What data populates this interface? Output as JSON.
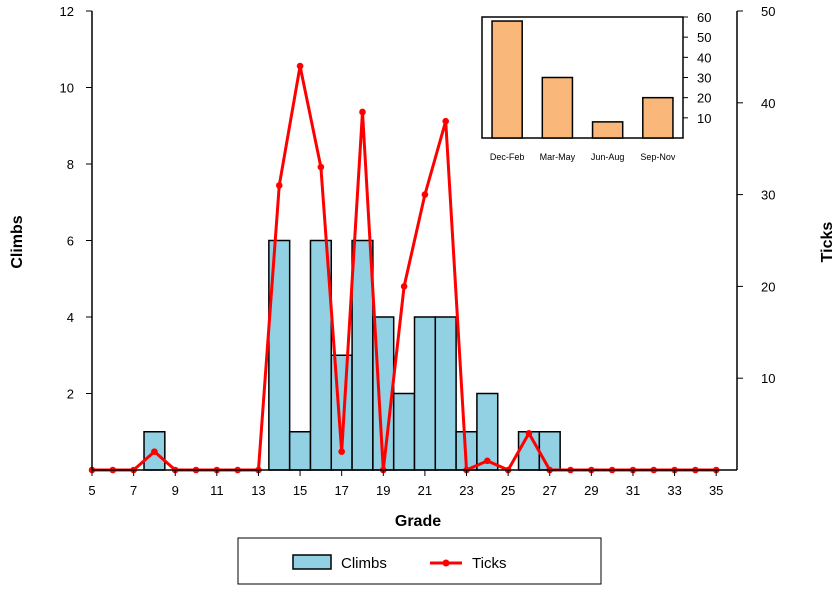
{
  "chart_data": [
    {
      "type": "bar",
      "xlabel": "Grade",
      "ylabel": "Climbs",
      "y2label": "Ticks",
      "xlim": [
        5,
        36
      ],
      "ylim": [
        0,
        12
      ],
      "y2lim": [
        0,
        50
      ],
      "xticks": [
        "5",
        "7",
        "9",
        "11",
        "13",
        "15",
        "17",
        "19",
        "21",
        "23",
        "25",
        "27",
        "29",
        "31",
        "33",
        "35"
      ],
      "yticks": [
        "2",
        "4",
        "6",
        "8",
        "10",
        "12"
      ],
      "y2ticks": [
        "10",
        "20",
        "30",
        "40",
        "50"
      ],
      "grid": false,
      "legend_position": "bottom",
      "series": [
        {
          "name": "Climbs",
          "type": "bar",
          "axis": "left",
          "color": "#92D0E4",
          "x": [
            5,
            6,
            7,
            8,
            9,
            10,
            11,
            12,
            13,
            14,
            15,
            16,
            17,
            18,
            19,
            20,
            21,
            22,
            23,
            24,
            25,
            26,
            27,
            28,
            29,
            30,
            31,
            32,
            33,
            34,
            35
          ],
          "values": [
            0,
            0,
            0,
            1,
            0,
            0,
            0,
            0,
            0,
            6,
            1,
            6,
            3,
            6,
            4,
            2,
            4,
            4,
            1,
            2,
            0,
            1,
            1,
            0,
            0,
            0,
            0,
            0,
            0,
            0,
            0
          ]
        },
        {
          "name": "Ticks",
          "type": "line",
          "axis": "right",
          "color": "#FF0000",
          "x": [
            5,
            6,
            7,
            8,
            9,
            10,
            11,
            12,
            13,
            14,
            15,
            16,
            17,
            18,
            19,
            20,
            21,
            22,
            23,
            24,
            25,
            26,
            27,
            28,
            29,
            30,
            31,
            32,
            33,
            34,
            35
          ],
          "values": [
            0,
            0,
            0,
            2,
            0,
            0,
            0,
            0,
            0,
            31,
            44,
            33,
            2,
            39,
            0,
            20,
            30,
            38,
            0,
            1,
            0,
            4,
            0,
            0,
            0,
            0,
            0,
            0,
            0,
            0,
            0
          ]
        }
      ]
    },
    {
      "type": "bar",
      "inset": true,
      "categories": [
        "Dec-Feb",
        "Mar-May",
        "Jun-Aug",
        "Sep-Nov"
      ],
      "values": [
        58,
        30,
        8,
        20
      ],
      "ylim": [
        0,
        60
      ],
      "yticks": [
        "10",
        "20",
        "30",
        "40",
        "50",
        "60"
      ],
      "color": "#F9B77A"
    }
  ],
  "legend": {
    "items": [
      {
        "label": "Climbs",
        "color": "#92D0E4",
        "marker": "box"
      },
      {
        "label": "Ticks",
        "color": "#FF0000",
        "marker": "line-dot"
      }
    ]
  }
}
